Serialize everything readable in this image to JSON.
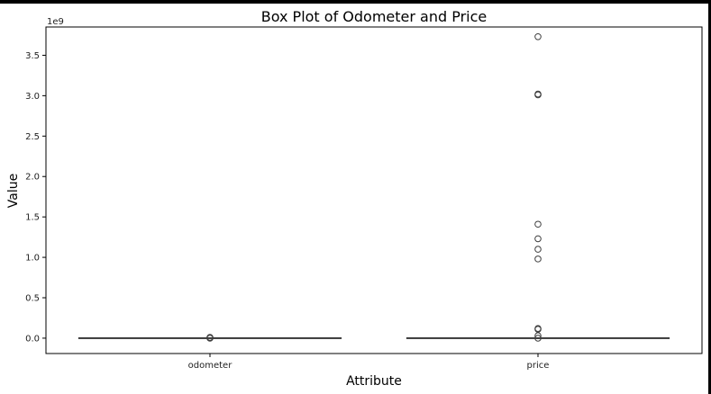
{
  "chart_data": {
    "type": "box",
    "title": "Box Plot of Odometer and Price",
    "xlabel": "Attribute",
    "ylabel": "Value",
    "y_offset_label": "1e9",
    "ylim": [
      -0.19,
      3.85
    ],
    "y_ticks": [
      0.0,
      0.5,
      1.0,
      1.5,
      2.0,
      2.5,
      3.0,
      3.5
    ],
    "y_tick_labels": [
      "0.0",
      "0.5",
      "1.0",
      "1.5",
      "2.0",
      "2.5",
      "3.0",
      "3.5"
    ],
    "categories": [
      "odometer",
      "price"
    ],
    "series": [
      {
        "category": "odometer",
        "whisker_low": 0.0,
        "q1": 0.0,
        "median": 0.0,
        "q3": 0.0,
        "whisker_high": 0.0,
        "outliers": [
          0.0,
          0.005,
          0.01
        ]
      },
      {
        "category": "price",
        "whisker_low": 0.0,
        "q1": 0.0,
        "median": 0.0,
        "q3": 0.0,
        "whisker_high": 0.0,
        "outliers": [
          3.73,
          3.02,
          3.01,
          1.41,
          1.23,
          1.1,
          0.98,
          0.12,
          0.11,
          0.03,
          0.0
        ]
      }
    ],
    "colors": {
      "box_edge": "#3d3d3d",
      "marker_edge": "#3d3d3d",
      "axes": "#000000"
    },
    "grid": false,
    "legend": "none"
  }
}
